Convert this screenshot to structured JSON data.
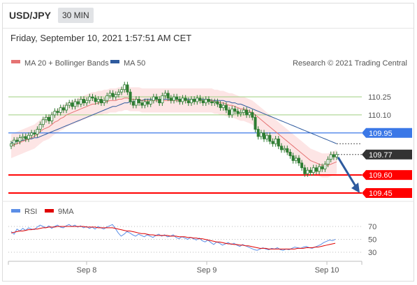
{
  "header": {
    "symbol": "USD/JPY",
    "timeframe": "30 MIN",
    "datetime": "Friday, September 10, 2021 1:57:51 AM CET"
  },
  "legend": {
    "ma20": "MA 20 + Bollinger Bands",
    "ma50": "MA 50",
    "credit": "Research © 2021 Trading Central",
    "rsi": "RSI",
    "rsi_ma": "9MA"
  },
  "colors": {
    "candle": "#2e7d32",
    "ma20": "#e57373",
    "ma50": "#2e5a9e",
    "band": "#fde0e0",
    "support": "#ff0000",
    "resistance_green": "#9fcf7f",
    "pivot_blue": "#3b78e7",
    "current": "#333333",
    "rsi": "#5b8ee6",
    "rsi_ma": "#e00000"
  },
  "chart_data": [
    {
      "type": "candlestick",
      "title": "",
      "ylim": [
        109.4,
        110.4
      ],
      "x_ticks": [
        "Sep 8",
        "Sep 9",
        "Sep 10"
      ],
      "levels": [
        {
          "value": 110.25,
          "label": "110.25",
          "style": "green"
        },
        {
          "value": 110.1,
          "label": "110.10",
          "style": "green"
        },
        {
          "value": 109.95,
          "label": "109.95",
          "style": "blue"
        },
        {
          "value": 109.77,
          "label": "109.77",
          "style": "current"
        },
        {
          "value": 109.6,
          "label": "109.60",
          "style": "red"
        },
        {
          "value": 109.45,
          "label": "109.45",
          "style": "red"
        }
      ],
      "close": [
        109.86,
        109.89,
        109.88,
        109.91,
        109.92,
        109.9,
        109.93,
        109.95,
        109.94,
        109.98,
        110.02,
        110.06,
        110.08,
        110.05,
        110.1,
        110.13,
        110.12,
        110.16,
        110.14,
        110.18,
        110.2,
        110.17,
        110.21,
        110.19,
        110.23,
        110.2,
        110.22,
        110.25,
        110.24,
        110.21,
        110.23,
        110.2,
        110.22,
        110.26,
        110.28,
        110.25,
        110.27,
        110.29,
        110.31,
        110.35,
        110.29,
        110.21,
        110.18,
        110.23,
        110.2,
        110.18,
        110.21,
        110.19,
        110.22,
        110.25,
        110.23,
        110.2,
        110.26,
        110.28,
        110.24,
        110.22,
        110.25,
        110.23,
        110.21,
        110.24,
        110.22,
        110.2,
        110.23,
        110.21,
        110.24,
        110.22,
        110.2,
        110.23,
        110.21,
        110.2,
        110.21,
        110.19,
        110.16,
        110.18,
        110.14,
        110.1,
        110.15,
        110.13,
        110.11,
        110.12,
        110.14,
        110.1,
        110.12,
        110.08,
        109.98,
        109.92,
        109.95,
        109.9,
        109.93,
        109.88,
        109.86,
        109.9,
        109.84,
        109.81,
        109.82,
        109.79,
        109.76,
        109.72,
        109.74,
        109.7,
        109.66,
        109.61,
        109.64,
        109.62,
        109.66,
        109.63,
        109.67,
        109.65,
        109.69,
        109.73,
        109.77,
        109.75,
        109.77
      ],
      "ma20": [
        109.84,
        109.85,
        109.86,
        109.87,
        109.88,
        109.89,
        109.9,
        109.91,
        109.92,
        109.94,
        109.96,
        109.98,
        109.99,
        110.0,
        110.02,
        110.04,
        110.05,
        110.07,
        110.08,
        110.1,
        110.11,
        110.12,
        110.13,
        110.14,
        110.15,
        110.16,
        110.17,
        110.18,
        110.19,
        110.19,
        110.2,
        110.2,
        110.21,
        110.21,
        110.22,
        110.22,
        110.22,
        110.23,
        110.23,
        110.24,
        110.24,
        110.23,
        110.23,
        110.23,
        110.23,
        110.22,
        110.22,
        110.22,
        110.22,
        110.22,
        110.22,
        110.22,
        110.22,
        110.22,
        110.22,
        110.22,
        110.22,
        110.22,
        110.22,
        110.22,
        110.22,
        110.22,
        110.22,
        110.22,
        110.22,
        110.22,
        110.22,
        110.22,
        110.22,
        110.22,
        110.21,
        110.21,
        110.2,
        110.2,
        110.19,
        110.18,
        110.18,
        110.17,
        110.16,
        110.15,
        110.15,
        110.14,
        110.13,
        110.12,
        110.1,
        110.08,
        110.06,
        110.04,
        110.02,
        110.0,
        109.98,
        109.96,
        109.94,
        109.92,
        109.9,
        109.88,
        109.86,
        109.84,
        109.82,
        109.8,
        109.78,
        109.76,
        109.74,
        109.72,
        109.71,
        109.7,
        109.69,
        109.68,
        109.68,
        109.68,
        109.69,
        109.7,
        109.71
      ],
      "ma50": [
        109.87,
        109.87,
        109.88,
        109.88,
        109.89,
        109.89,
        109.9,
        109.9,
        109.91,
        109.91,
        109.92,
        109.93,
        109.94,
        109.95,
        109.96,
        109.97,
        109.98,
        109.99,
        110.0,
        110.01,
        110.02,
        110.03,
        110.04,
        110.05,
        110.06,
        110.07,
        110.08,
        110.09,
        110.1,
        110.11,
        110.12,
        110.13,
        110.14,
        110.15,
        110.16,
        110.17,
        110.17,
        110.18,
        110.19,
        110.2,
        110.2,
        110.21,
        110.21,
        110.22,
        110.22,
        110.22,
        110.23,
        110.23,
        110.23,
        110.23,
        110.23,
        110.23,
        110.23,
        110.23,
        110.23,
        110.23,
        110.23,
        110.23,
        110.23,
        110.23,
        110.23,
        110.23,
        110.23,
        110.23,
        110.23,
        110.23,
        110.23,
        110.23,
        110.23,
        110.22,
        110.22,
        110.22,
        110.22,
        110.22,
        110.21,
        110.21,
        110.2,
        110.2,
        110.19,
        110.19,
        110.18,
        110.17,
        110.16,
        110.15,
        110.14,
        110.13,
        110.12,
        110.11,
        110.1,
        110.09,
        110.08,
        110.07,
        110.06,
        110.05,
        110.04,
        110.03,
        110.02,
        110.01,
        110.0,
        109.99,
        109.98,
        109.97,
        109.96,
        109.95,
        109.94,
        109.93,
        109.92,
        109.91,
        109.9,
        109.89,
        109.88,
        109.87,
        109.86
      ],
      "forecast_arrow": {
        "from": 109.77,
        "to": 109.45
      }
    },
    {
      "type": "line",
      "title": "",
      "ylim": [
        20,
        80
      ],
      "y_ticks": [
        70,
        50,
        30
      ],
      "series": [
        {
          "name": "RSI",
          "values": [
            62,
            58,
            66,
            63,
            67,
            64,
            68,
            66,
            65,
            69,
            72,
            70,
            68,
            71,
            67,
            70,
            72,
            69,
            68,
            71,
            73,
            70,
            72,
            69,
            71,
            68,
            70,
            67,
            69,
            66,
            70,
            68,
            66,
            69,
            71,
            73,
            67,
            60,
            55,
            58,
            62,
            60,
            57,
            55,
            58,
            56,
            54,
            57,
            55,
            53,
            56,
            58,
            55,
            57,
            54,
            55,
            57,
            53,
            51,
            54,
            52,
            50,
            53,
            51,
            49,
            52,
            48,
            46,
            49,
            45,
            42,
            46,
            44,
            41,
            43,
            45,
            42,
            44,
            41,
            39,
            42,
            40,
            38,
            36,
            34,
            33,
            35,
            37,
            35,
            34,
            36,
            35,
            37,
            34,
            33,
            35,
            34,
            36,
            38,
            37,
            36,
            38,
            39,
            37,
            36,
            38,
            40,
            42,
            45,
            47,
            49,
            48,
            50
          ]
        },
        {
          "name": "9MA",
          "values": [
            60,
            61,
            62,
            63,
            63,
            64,
            65,
            65,
            66,
            66,
            67,
            68,
            68,
            69,
            69,
            69,
            70,
            70,
            70,
            70,
            70,
            70,
            70,
            70,
            70,
            70,
            69,
            69,
            69,
            69,
            68,
            68,
            68,
            68,
            68,
            68,
            67,
            66,
            65,
            64,
            63,
            63,
            62,
            61,
            60,
            59,
            59,
            58,
            57,
            57,
            56,
            56,
            56,
            56,
            56,
            55,
            55,
            55,
            54,
            54,
            54,
            53,
            53,
            52,
            52,
            51,
            51,
            50,
            49,
            48,
            47,
            46,
            46,
            45,
            44,
            43,
            43,
            42,
            42,
            41,
            41,
            40,
            40,
            39,
            38,
            37,
            36,
            36,
            36,
            35,
            35,
            35,
            35,
            35,
            35,
            35,
            35,
            35,
            35,
            36,
            36,
            36,
            37,
            37,
            37,
            38,
            38,
            39,
            40,
            41,
            42,
            43,
            44
          ]
        }
      ]
    }
  ]
}
